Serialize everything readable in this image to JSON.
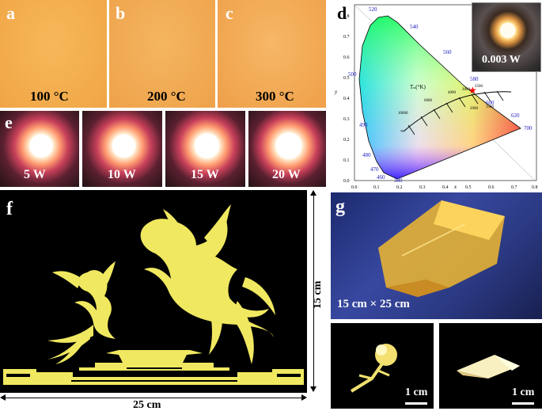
{
  "panel_a": {
    "label": "a",
    "temperature": "100 °C"
  },
  "panel_b": {
    "label": "b",
    "temperature": "200 °C"
  },
  "panel_c": {
    "label": "c",
    "temperature": "300 °C"
  },
  "panel_d": {
    "label": "d",
    "inset_power": "0.003 W",
    "x_axis_label": "x",
    "y_axis_label": "y",
    "x_ticks": [
      "0.0",
      "0.1",
      "0.2",
      "0.3",
      "0.4",
      "0.5",
      "0.6",
      "0.7",
      "0.8"
    ],
    "y_ticks": [
      "0.0",
      "0.1",
      "0.2",
      "0.3",
      "0.4",
      "0.5",
      "0.6",
      "0.7",
      "0.8"
    ],
    "wavelength_labels": [
      "380",
      "460",
      "470",
      "480",
      "490",
      "500",
      "520",
      "540",
      "560",
      "580",
      "600",
      "620",
      "700"
    ],
    "planckian_label": "Tₙ(°K)",
    "cct_labels": [
      "10000",
      "6000",
      "4000",
      "3000",
      "2000",
      "1500",
      "∞",
      "2500"
    ]
  },
  "panel_e": {
    "label": "e",
    "powers": [
      "5 W",
      "10 W",
      "15 W",
      "20 W"
    ]
  },
  "panel_f": {
    "label": "f",
    "height_dim": "15 cm",
    "width_dim": "25 cm"
  },
  "panel_g": {
    "label": "g",
    "size": "15 cm × 25 cm",
    "scale_left": "1 cm",
    "scale_right": "1 cm"
  }
}
